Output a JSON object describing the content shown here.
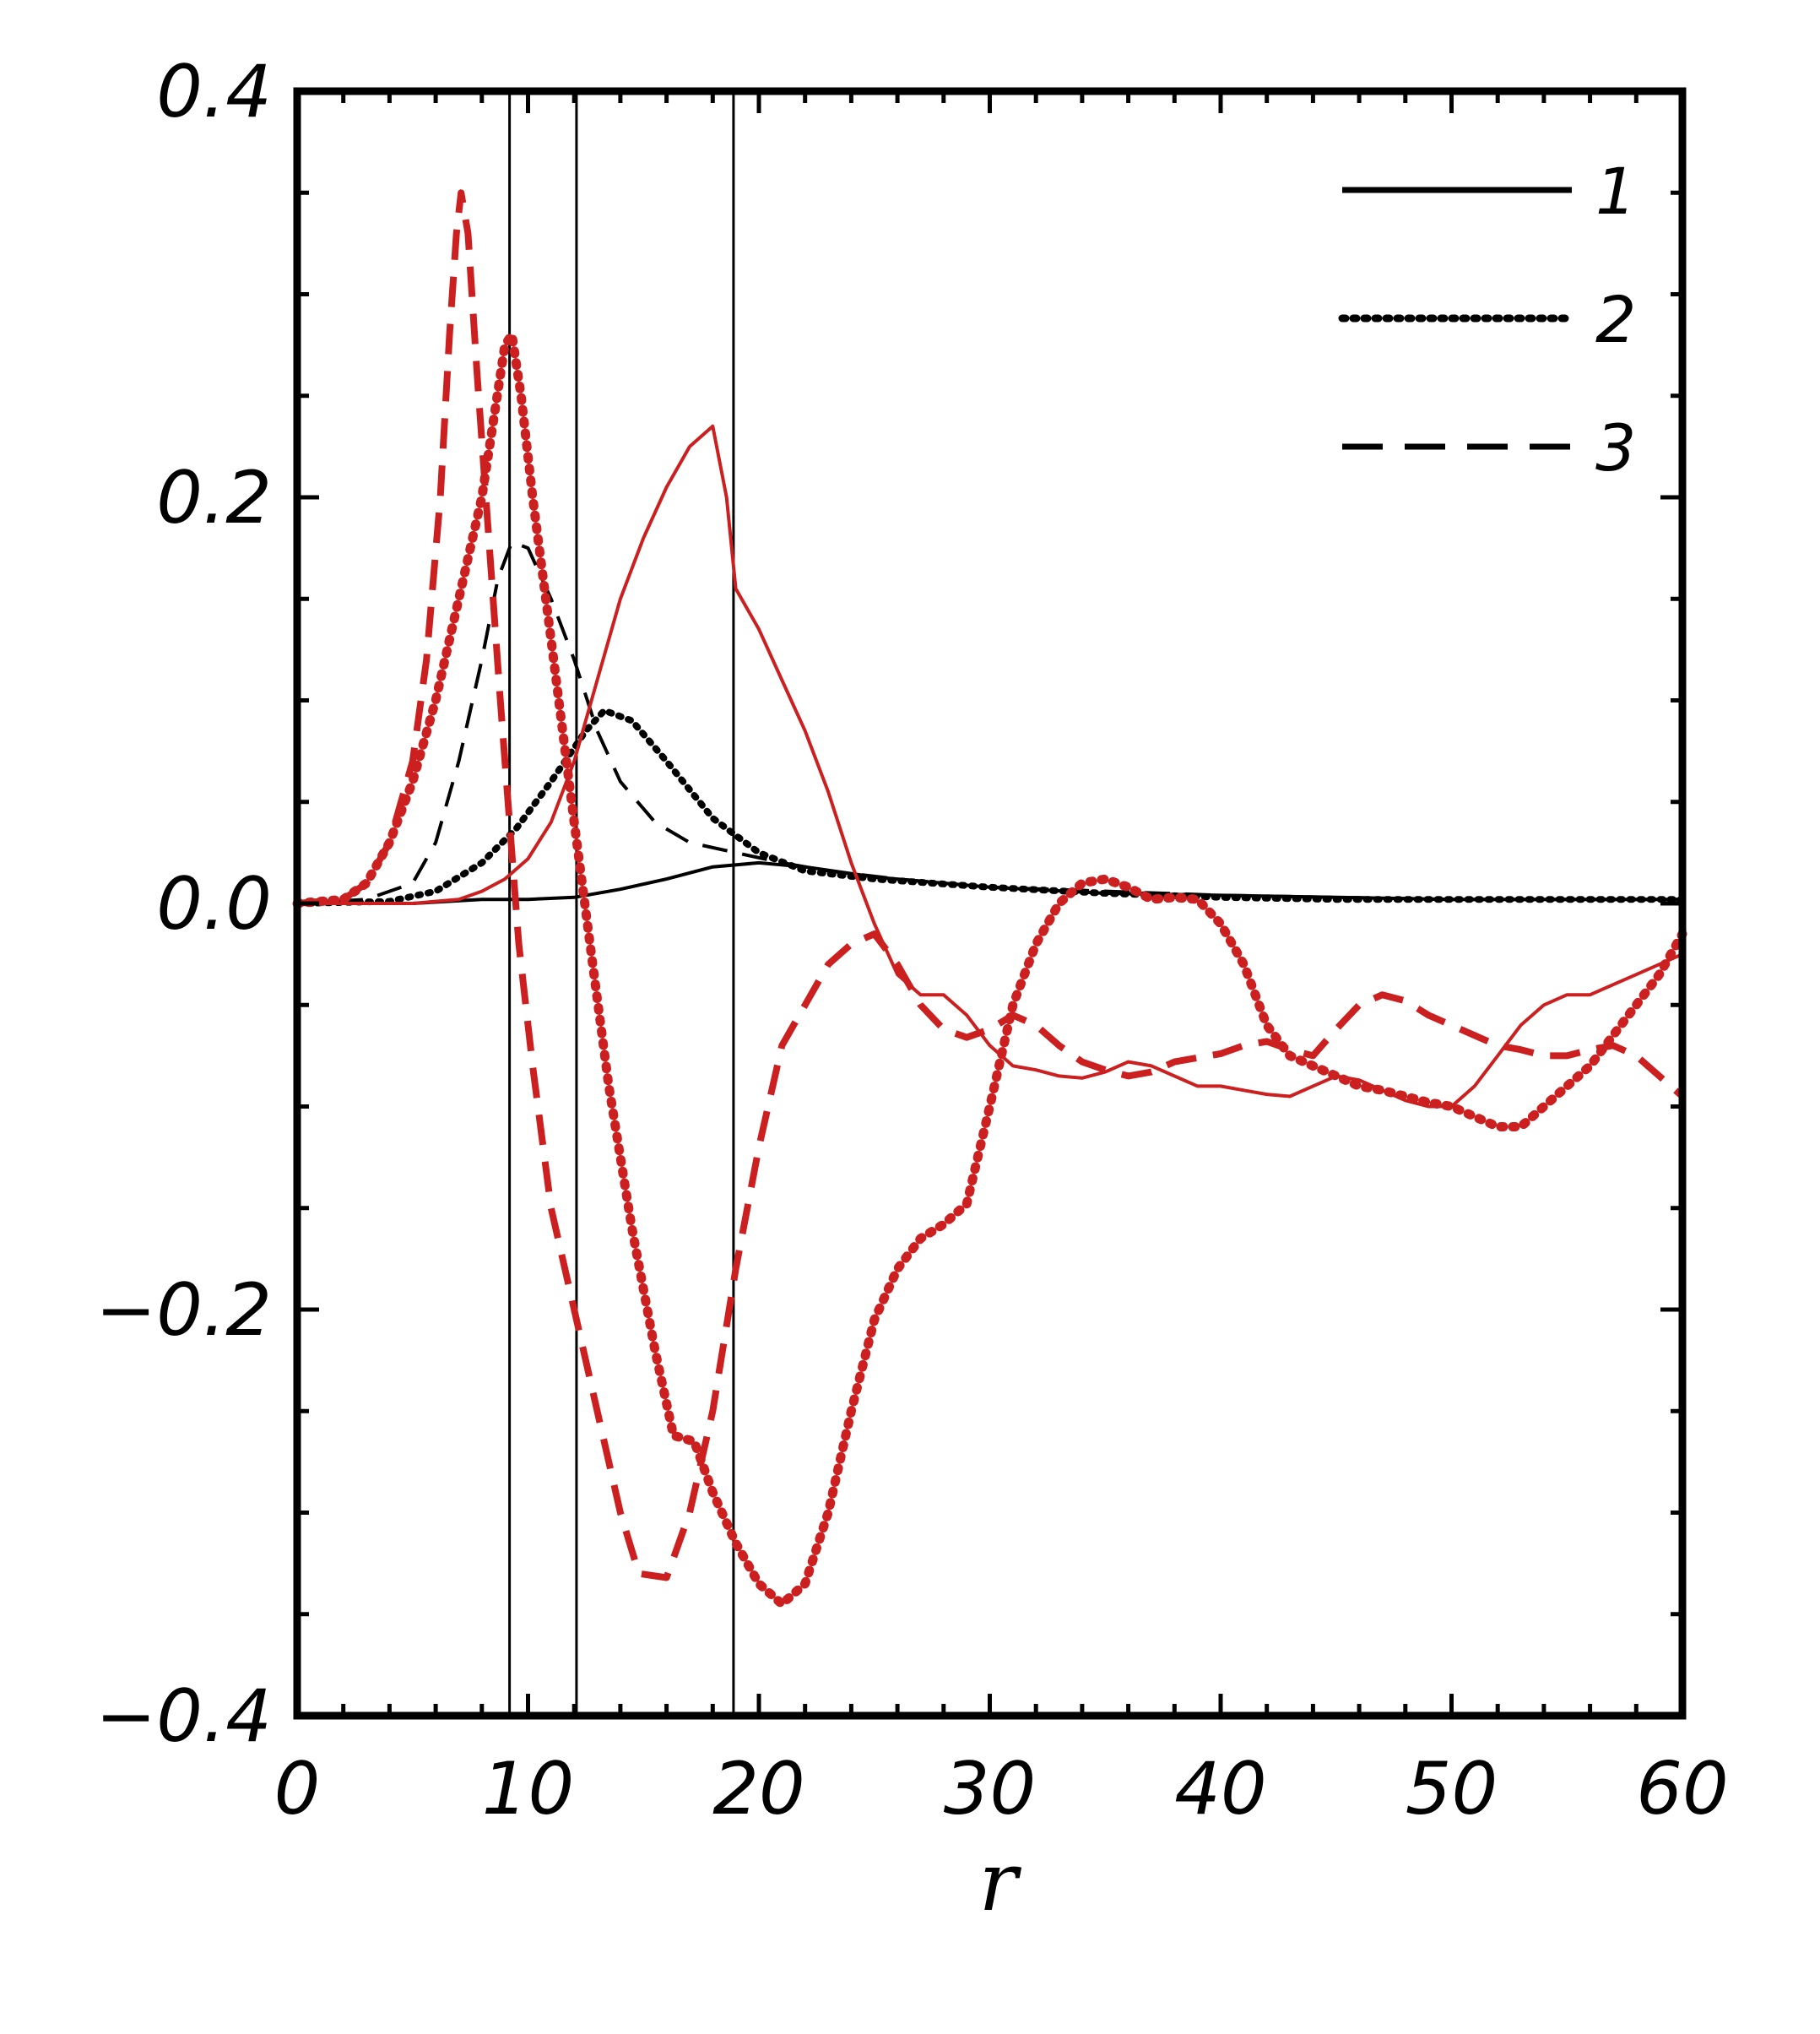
{
  "chart_data": {
    "type": "line",
    "title": "",
    "xlabel": "r",
    "ylabel": "",
    "xlim": [
      0,
      60
    ],
    "ylim": [
      -0.4,
      0.4
    ],
    "xticks": [
      0,
      10,
      20,
      30,
      40,
      50,
      60
    ],
    "xtick_labels": [
      "0",
      "10",
      "20",
      "30",
      "40",
      "50",
      "60"
    ],
    "yticks": [
      0.4,
      0.2,
      0.0,
      -0.2,
      -0.4
    ],
    "ytick_labels": [
      "0.4",
      "0.2",
      "0.0",
      "−0.2",
      "−0.4"
    ],
    "vertical_lines": [
      9.2,
      12.1,
      18.9
    ],
    "legend": {
      "position": "top-right",
      "entries": [
        {
          "label": "1",
          "style": "solid"
        },
        {
          "label": "2",
          "style": "dotted"
        },
        {
          "label": "3",
          "style": "dashed"
        }
      ]
    },
    "series": [
      {
        "color": "#000000",
        "style": "solid",
        "width": "thin",
        "points": [
          [
            0,
            0
          ],
          [
            5,
            0
          ],
          [
            8,
            0.002
          ],
          [
            10,
            0.002
          ],
          [
            12,
            0.003
          ],
          [
            14,
            0.007
          ],
          [
            16,
            0.012
          ],
          [
            18,
            0.018
          ],
          [
            20,
            0.02
          ],
          [
            22,
            0.018
          ],
          [
            25,
            0.013
          ],
          [
            28,
            0.01
          ],
          [
            30,
            0.008
          ],
          [
            35,
            0.005
          ],
          [
            40,
            0.004
          ],
          [
            45,
            0.003
          ],
          [
            50,
            0.002
          ],
          [
            55,
            0.002
          ],
          [
            60,
            0.002
          ]
        ]
      },
      {
        "color": "#000000",
        "style": "dotted",
        "width": "thin",
        "points": [
          [
            0,
            0
          ],
          [
            4,
            0.001
          ],
          [
            6,
            0.006
          ],
          [
            8,
            0.02
          ],
          [
            9.5,
            0.037
          ],
          [
            11,
            0.06
          ],
          [
            12.5,
            0.085
          ],
          [
            13.3,
            0.095
          ],
          [
            14.5,
            0.09
          ],
          [
            16,
            0.07
          ],
          [
            18,
            0.042
          ],
          [
            20,
            0.025
          ],
          [
            22,
            0.016
          ],
          [
            25,
            0.012
          ],
          [
            30,
            0.008
          ],
          [
            35,
            0.005
          ],
          [
            40,
            0.003
          ],
          [
            45,
            0.002
          ],
          [
            50,
            0.002
          ],
          [
            60,
            0.002
          ]
        ]
      },
      {
        "color": "#000000",
        "style": "dashed",
        "width": "thin",
        "points": [
          [
            0,
            0
          ],
          [
            3,
            0.002
          ],
          [
            5,
            0.01
          ],
          [
            6,
            0.03
          ],
          [
            7,
            0.07
          ],
          [
            8,
            0.12
          ],
          [
            8.7,
            0.16
          ],
          [
            9.3,
            0.178
          ],
          [
            10,
            0.175
          ],
          [
            11,
            0.15
          ],
          [
            12,
            0.12
          ],
          [
            13,
            0.085
          ],
          [
            14,
            0.06
          ],
          [
            15.5,
            0.04
          ],
          [
            17,
            0.03
          ],
          [
            19,
            0.025
          ],
          [
            21,
            0.02
          ],
          [
            23,
            0.016
          ],
          [
            26,
            0.012
          ],
          [
            30,
            0.008
          ],
          [
            40,
            0.004
          ],
          [
            50,
            0.002
          ],
          [
            60,
            0.002
          ]
        ]
      },
      {
        "color": "#cc1f1f",
        "style": "solid",
        "width": "thin",
        "points": [
          [
            0,
            0
          ],
          [
            5,
            0
          ],
          [
            7,
            0.002
          ],
          [
            8,
            0.006
          ],
          [
            9,
            0.012
          ],
          [
            10,
            0.022
          ],
          [
            11,
            0.04
          ],
          [
            12,
            0.07
          ],
          [
            13,
            0.11
          ],
          [
            14,
            0.15
          ],
          [
            15,
            0.18
          ],
          [
            16,
            0.205
          ],
          [
            17,
            0.225
          ],
          [
            18,
            0.235
          ],
          [
            18.6,
            0.2
          ],
          [
            19,
            0.155
          ],
          [
            20,
            0.135
          ],
          [
            21,
            0.11
          ],
          [
            22,
            0.085
          ],
          [
            23,
            0.055
          ],
          [
            24,
            0.02
          ],
          [
            25,
            -0.01
          ],
          [
            26,
            -0.035
          ],
          [
            27,
            -0.045
          ],
          [
            28,
            -0.045
          ],
          [
            29,
            -0.055
          ],
          [
            30,
            -0.07
          ],
          [
            31,
            -0.08
          ],
          [
            32,
            -0.082
          ],
          [
            33,
            -0.085
          ],
          [
            34,
            -0.086
          ],
          [
            35,
            -0.083
          ],
          [
            36,
            -0.078
          ],
          [
            37,
            -0.08
          ],
          [
            38,
            -0.085
          ],
          [
            39,
            -0.09
          ],
          [
            40,
            -0.09
          ],
          [
            41,
            -0.092
          ],
          [
            42,
            -0.094
          ],
          [
            43,
            -0.095
          ],
          [
            44,
            -0.09
          ],
          [
            45,
            -0.085
          ],
          [
            46,
            -0.087
          ],
          [
            47,
            -0.092
          ],
          [
            48,
            -0.097
          ],
          [
            49,
            -0.1
          ],
          [
            50,
            -0.1
          ],
          [
            51,
            -0.09
          ],
          [
            52,
            -0.075
          ],
          [
            53,
            -0.06
          ],
          [
            54,
            -0.05
          ],
          [
            55,
            -0.045
          ],
          [
            56,
            -0.045
          ],
          [
            57,
            -0.04
          ],
          [
            58,
            -0.035
          ],
          [
            59,
            -0.03
          ],
          [
            60,
            -0.025
          ]
        ]
      },
      {
        "color": "#cc1f1f",
        "style": "dotted",
        "width": "thick",
        "points": [
          [
            0,
            0
          ],
          [
            2,
            0.002
          ],
          [
            3,
            0.01
          ],
          [
            4,
            0.03
          ],
          [
            5,
            0.06
          ],
          [
            6,
            0.1
          ],
          [
            7,
            0.15
          ],
          [
            8,
            0.2
          ],
          [
            8.6,
            0.245
          ],
          [
            9,
            0.275
          ],
          [
            9.3,
            0.28
          ],
          [
            9.7,
            0.25
          ],
          [
            10.2,
            0.2
          ],
          [
            11,
            0.13
          ],
          [
            12,
            0.04
          ],
          [
            12.8,
            -0.03
          ],
          [
            13.5,
            -0.09
          ],
          [
            14.5,
            -0.16
          ],
          [
            15.5,
            -0.22
          ],
          [
            16.3,
            -0.262
          ],
          [
            17.2,
            -0.265
          ],
          [
            18,
            -0.29
          ],
          [
            19,
            -0.315
          ],
          [
            20,
            -0.335
          ],
          [
            21,
            -0.345
          ],
          [
            22,
            -0.335
          ],
          [
            23,
            -0.3
          ],
          [
            24,
            -0.25
          ],
          [
            25,
            -0.205
          ],
          [
            26,
            -0.18
          ],
          [
            27,
            -0.165
          ],
          [
            28,
            -0.158
          ],
          [
            29,
            -0.148
          ],
          [
            30,
            -0.1
          ],
          [
            31,
            -0.05
          ],
          [
            32,
            -0.02
          ],
          [
            33,
            0
          ],
          [
            34,
            0.01
          ],
          [
            35,
            0.012
          ],
          [
            36,
            0.008
          ],
          [
            37,
            0.002
          ],
          [
            38,
            0.003
          ],
          [
            39,
            0.002
          ],
          [
            40,
            -0.01
          ],
          [
            41,
            -0.03
          ],
          [
            42,
            -0.06
          ],
          [
            43,
            -0.075
          ],
          [
            44,
            -0.08
          ],
          [
            45,
            -0.085
          ],
          [
            46,
            -0.09
          ],
          [
            47,
            -0.092
          ],
          [
            48,
            -0.095
          ],
          [
            49,
            -0.098
          ],
          [
            50,
            -0.1
          ],
          [
            51,
            -0.105
          ],
          [
            52,
            -0.11
          ],
          [
            53,
            -0.11
          ],
          [
            54,
            -0.1
          ],
          [
            55,
            -0.09
          ],
          [
            56,
            -0.08
          ],
          [
            57,
            -0.065
          ],
          [
            58,
            -0.05
          ],
          [
            59,
            -0.035
          ],
          [
            60,
            -0.015
          ]
        ]
      },
      {
        "color": "#cc1f1f",
        "style": "dashed",
        "width": "thick",
        "points": [
          [
            0,
            0
          ],
          [
            2,
            0.002
          ],
          [
            3,
            0.01
          ],
          [
            4,
            0.03
          ],
          [
            5,
            0.07
          ],
          [
            5.6,
            0.12
          ],
          [
            6.2,
            0.2
          ],
          [
            6.6,
            0.28
          ],
          [
            6.9,
            0.33
          ],
          [
            7.1,
            0.35
          ],
          [
            7.4,
            0.33
          ],
          [
            7.8,
            0.26
          ],
          [
            8.3,
            0.18
          ],
          [
            8.8,
            0.1
          ],
          [
            9.2,
            0.04
          ],
          [
            9.6,
            -0.02
          ],
          [
            10.2,
            -0.08
          ],
          [
            11,
            -0.15
          ],
          [
            12,
            -0.2
          ],
          [
            13,
            -0.25
          ],
          [
            14,
            -0.3
          ],
          [
            14.8,
            -0.33
          ],
          [
            16,
            -0.332
          ],
          [
            17,
            -0.3
          ],
          [
            18,
            -0.25
          ],
          [
            19,
            -0.18
          ],
          [
            20,
            -0.12
          ],
          [
            21,
            -0.07
          ],
          [
            22,
            -0.05
          ],
          [
            23,
            -0.03
          ],
          [
            24,
            -0.02
          ],
          [
            25,
            -0.015
          ],
          [
            26,
            -0.03
          ],
          [
            27,
            -0.05
          ],
          [
            28,
            -0.062
          ],
          [
            29,
            -0.066
          ],
          [
            30,
            -0.062
          ],
          [
            31,
            -0.055
          ],
          [
            32,
            -0.06
          ],
          [
            33,
            -0.07
          ],
          [
            34,
            -0.078
          ],
          [
            35,
            -0.082
          ],
          [
            36,
            -0.085
          ],
          [
            37,
            -0.083
          ],
          [
            38,
            -0.078
          ],
          [
            39,
            -0.076
          ],
          [
            40,
            -0.074
          ],
          [
            41,
            -0.07
          ],
          [
            42,
            -0.068
          ],
          [
            43,
            -0.072
          ],
          [
            44,
            -0.075
          ],
          [
            45,
            -0.062
          ],
          [
            46,
            -0.05
          ],
          [
            47,
            -0.045
          ],
          [
            48,
            -0.048
          ],
          [
            49,
            -0.055
          ],
          [
            50,
            -0.06
          ],
          [
            51,
            -0.065
          ],
          [
            52,
            -0.07
          ],
          [
            53,
            -0.072
          ],
          [
            54,
            -0.075
          ],
          [
            55,
            -0.075
          ],
          [
            56,
            -0.072
          ],
          [
            57,
            -0.07
          ],
          [
            58,
            -0.075
          ],
          [
            59,
            -0.085
          ],
          [
            60,
            -0.095
          ]
        ]
      }
    ]
  }
}
